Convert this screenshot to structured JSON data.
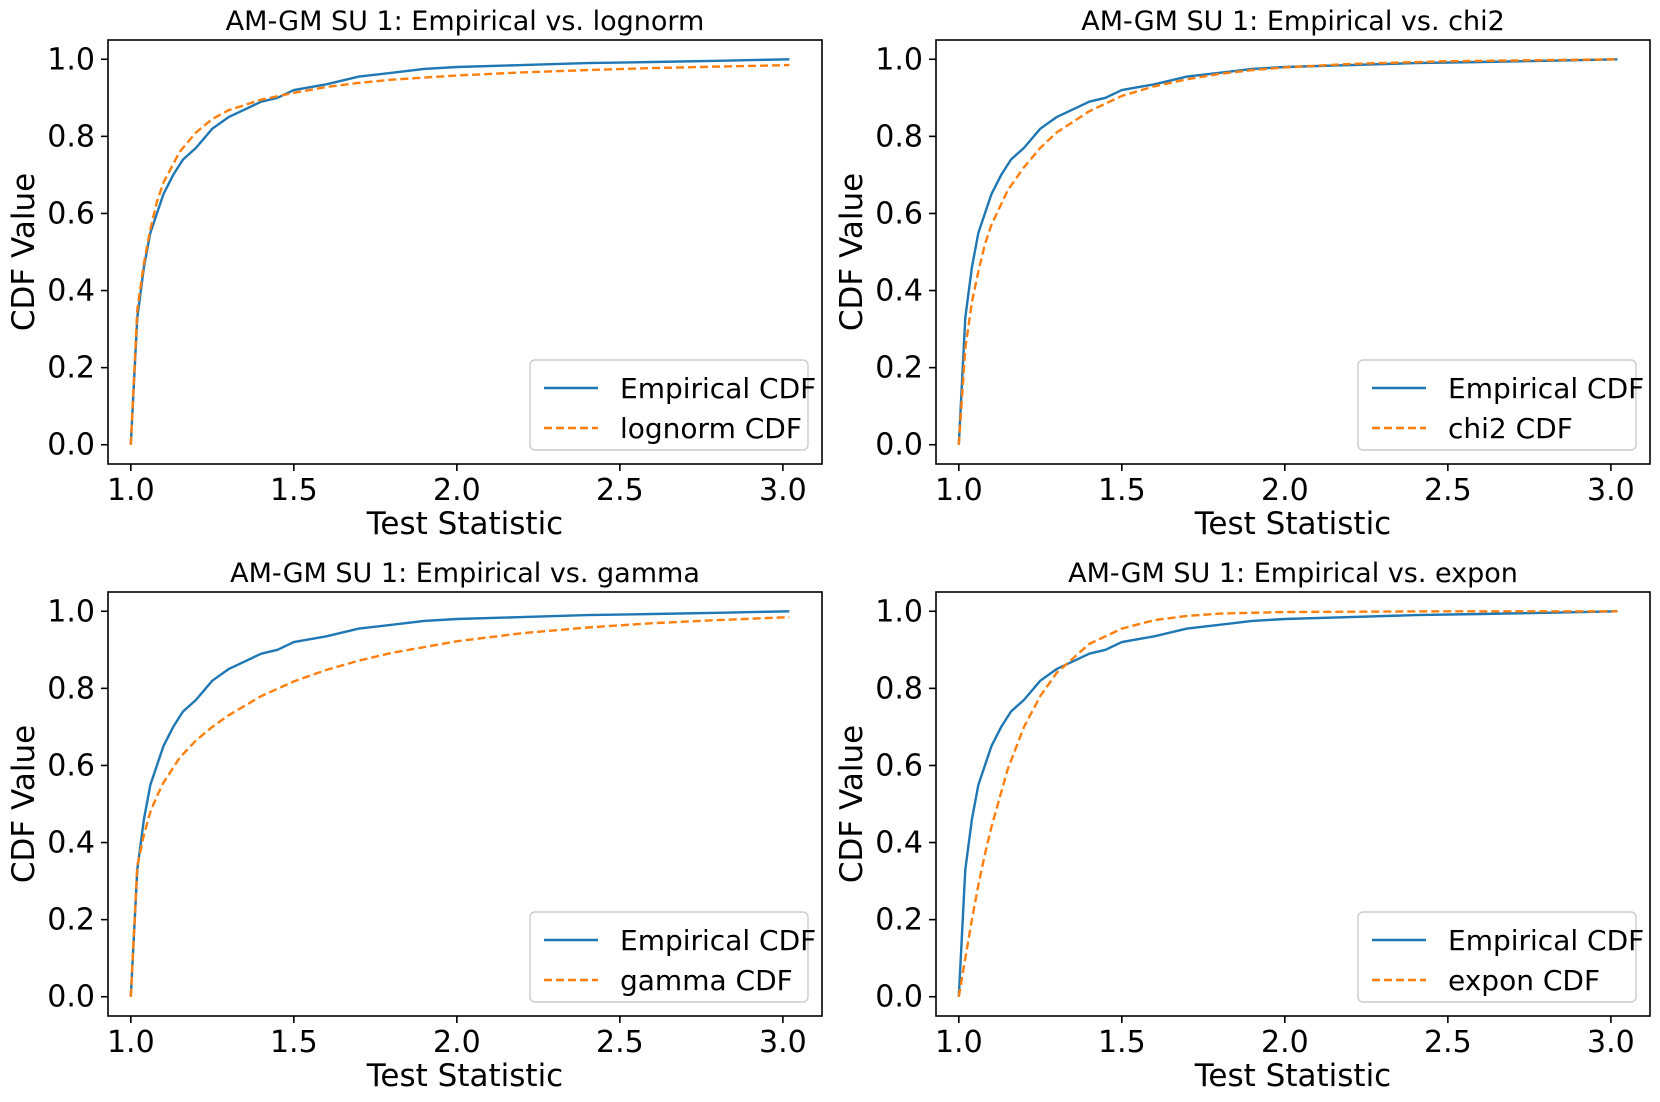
{
  "figure": {
    "colors": {
      "empirical": "#1f77b4",
      "fitted": "#ff7f0e"
    }
  },
  "chart_data": [
    {
      "type": "line",
      "title": "AM-GM SU 1: Empirical vs. lognorm",
      "xlabel": "Test Statistic",
      "ylabel": "CDF Value",
      "xlim": [
        0.93,
        3.12
      ],
      "ylim": [
        -0.05,
        1.05
      ],
      "xticks": [
        1.0,
        1.5,
        2.0,
        2.5,
        3.0
      ],
      "xtick_labels": [
        "1.0",
        "1.5",
        "2.0",
        "2.5",
        "3.0"
      ],
      "yticks": [
        0.0,
        0.2,
        0.4,
        0.6,
        0.8,
        1.0
      ],
      "ytick_labels": [
        "0.0",
        "0.2",
        "0.4",
        "0.6",
        "0.8",
        "1.0"
      ],
      "legend_position": "lower-right",
      "series": [
        {
          "name": "Empirical CDF",
          "style": "solid",
          "x": [
            1.0,
            1.02,
            1.04,
            1.06,
            1.08,
            1.1,
            1.13,
            1.16,
            1.2,
            1.25,
            1.3,
            1.35,
            1.4,
            1.45,
            1.5,
            1.6,
            1.7,
            1.8,
            1.9,
            2.0,
            2.2,
            2.4,
            2.6,
            2.8,
            3.02
          ],
          "y": [
            0.0,
            0.33,
            0.46,
            0.55,
            0.6,
            0.65,
            0.7,
            0.74,
            0.77,
            0.82,
            0.85,
            0.87,
            0.89,
            0.9,
            0.92,
            0.935,
            0.955,
            0.965,
            0.975,
            0.98,
            0.985,
            0.99,
            0.993,
            0.996,
            1.0
          ]
        },
        {
          "name": "lognorm CDF",
          "style": "dashed",
          "x": [
            1.0,
            1.02,
            1.04,
            1.06,
            1.08,
            1.1,
            1.15,
            1.2,
            1.25,
            1.3,
            1.4,
            1.5,
            1.6,
            1.7,
            1.8,
            2.0,
            2.2,
            2.4,
            2.6,
            2.8,
            3.02
          ],
          "y": [
            0.0,
            0.35,
            0.47,
            0.56,
            0.63,
            0.68,
            0.76,
            0.81,
            0.845,
            0.868,
            0.895,
            0.913,
            0.928,
            0.939,
            0.947,
            0.958,
            0.966,
            0.972,
            0.977,
            0.981,
            0.985
          ]
        }
      ]
    },
    {
      "type": "line",
      "title": "AM-GM SU 1: Empirical vs. chi2",
      "xlabel": "Test Statistic",
      "ylabel": "CDF Value",
      "xlim": [
        0.93,
        3.12
      ],
      "ylim": [
        -0.05,
        1.05
      ],
      "xticks": [
        1.0,
        1.5,
        2.0,
        2.5,
        3.0
      ],
      "xtick_labels": [
        "1.0",
        "1.5",
        "2.0",
        "2.5",
        "3.0"
      ],
      "yticks": [
        0.0,
        0.2,
        0.4,
        0.6,
        0.8,
        1.0
      ],
      "ytick_labels": [
        "0.0",
        "0.2",
        "0.4",
        "0.6",
        "0.8",
        "1.0"
      ],
      "legend_position": "lower-right",
      "series": [
        {
          "name": "Empirical CDF",
          "style": "solid",
          "x": [
            1.0,
            1.02,
            1.04,
            1.06,
            1.08,
            1.1,
            1.13,
            1.16,
            1.2,
            1.25,
            1.3,
            1.35,
            1.4,
            1.45,
            1.5,
            1.6,
            1.7,
            1.8,
            1.9,
            2.0,
            2.2,
            2.4,
            2.6,
            2.8,
            3.02
          ],
          "y": [
            0.0,
            0.33,
            0.46,
            0.55,
            0.6,
            0.65,
            0.7,
            0.74,
            0.77,
            0.82,
            0.85,
            0.87,
            0.89,
            0.9,
            0.92,
            0.935,
            0.955,
            0.965,
            0.975,
            0.98,
            0.985,
            0.99,
            0.993,
            0.996,
            1.0
          ]
        },
        {
          "name": "chi2 CDF",
          "style": "dashed",
          "x": [
            1.0,
            1.02,
            1.04,
            1.06,
            1.08,
            1.1,
            1.15,
            1.2,
            1.25,
            1.3,
            1.4,
            1.5,
            1.6,
            1.7,
            1.8,
            1.9,
            2.0,
            2.2,
            2.5,
            3.02
          ],
          "y": [
            0.0,
            0.25,
            0.37,
            0.45,
            0.52,
            0.57,
            0.66,
            0.72,
            0.77,
            0.81,
            0.865,
            0.905,
            0.93,
            0.948,
            0.962,
            0.972,
            0.979,
            0.988,
            0.995,
            1.0
          ]
        }
      ]
    },
    {
      "type": "line",
      "title": "AM-GM SU 1: Empirical vs. gamma",
      "xlabel": "Test Statistic",
      "ylabel": "CDF Value",
      "xlim": [
        0.93,
        3.12
      ],
      "ylim": [
        -0.05,
        1.05
      ],
      "xticks": [
        1.0,
        1.5,
        2.0,
        2.5,
        3.0
      ],
      "xtick_labels": [
        "1.0",
        "1.5",
        "2.0",
        "2.5",
        "3.0"
      ],
      "yticks": [
        0.0,
        0.2,
        0.4,
        0.6,
        0.8,
        1.0
      ],
      "ytick_labels": [
        "0.0",
        "0.2",
        "0.4",
        "0.6",
        "0.8",
        "1.0"
      ],
      "legend_position": "lower-right",
      "series": [
        {
          "name": "Empirical CDF",
          "style": "solid",
          "x": [
            1.0,
            1.02,
            1.04,
            1.06,
            1.08,
            1.1,
            1.13,
            1.16,
            1.2,
            1.25,
            1.3,
            1.35,
            1.4,
            1.45,
            1.5,
            1.6,
            1.7,
            1.8,
            1.9,
            2.0,
            2.2,
            2.4,
            2.6,
            2.8,
            3.02
          ],
          "y": [
            0.0,
            0.33,
            0.46,
            0.55,
            0.6,
            0.65,
            0.7,
            0.74,
            0.77,
            0.82,
            0.85,
            0.87,
            0.89,
            0.9,
            0.92,
            0.935,
            0.955,
            0.965,
            0.975,
            0.98,
            0.985,
            0.99,
            0.993,
            0.996,
            1.0
          ]
        },
        {
          "name": "gamma CDF",
          "style": "dashed",
          "x": [
            1.0,
            1.02,
            1.04,
            1.06,
            1.08,
            1.1,
            1.15,
            1.2,
            1.25,
            1.3,
            1.4,
            1.5,
            1.6,
            1.7,
            1.8,
            2.0,
            2.2,
            2.4,
            2.6,
            2.8,
            3.02
          ],
          "y": [
            0.0,
            0.34,
            0.42,
            0.48,
            0.52,
            0.555,
            0.62,
            0.665,
            0.7,
            0.73,
            0.78,
            0.818,
            0.848,
            0.872,
            0.892,
            0.922,
            0.943,
            0.958,
            0.969,
            0.977,
            0.985
          ]
        }
      ]
    },
    {
      "type": "line",
      "title": "AM-GM SU 1: Empirical vs. expon",
      "xlabel": "Test Statistic",
      "ylabel": "CDF Value",
      "xlim": [
        0.93,
        3.12
      ],
      "ylim": [
        -0.05,
        1.05
      ],
      "xticks": [
        1.0,
        1.5,
        2.0,
        2.5,
        3.0
      ],
      "xtick_labels": [
        "1.0",
        "1.5",
        "2.0",
        "2.5",
        "3.0"
      ],
      "yticks": [
        0.0,
        0.2,
        0.4,
        0.6,
        0.8,
        1.0
      ],
      "ytick_labels": [
        "0.0",
        "0.2",
        "0.4",
        "0.6",
        "0.8",
        "1.0"
      ],
      "legend_position": "lower-right",
      "series": [
        {
          "name": "Empirical CDF",
          "style": "solid",
          "x": [
            1.0,
            1.02,
            1.04,
            1.06,
            1.08,
            1.1,
            1.13,
            1.16,
            1.2,
            1.25,
            1.3,
            1.35,
            1.4,
            1.45,
            1.5,
            1.6,
            1.7,
            1.8,
            1.9,
            2.0,
            2.2,
            2.4,
            2.6,
            2.8,
            3.02
          ],
          "y": [
            0.0,
            0.33,
            0.46,
            0.55,
            0.6,
            0.65,
            0.7,
            0.74,
            0.77,
            0.82,
            0.85,
            0.87,
            0.89,
            0.9,
            0.92,
            0.935,
            0.955,
            0.965,
            0.975,
            0.98,
            0.985,
            0.99,
            0.993,
            0.996,
            1.0
          ]
        },
        {
          "name": "expon CDF",
          "style": "dashed",
          "x": [
            1.0,
            1.02,
            1.04,
            1.06,
            1.08,
            1.1,
            1.15,
            1.2,
            1.25,
            1.3,
            1.4,
            1.5,
            1.6,
            1.7,
            1.8,
            2.0,
            2.2,
            2.5,
            3.02
          ],
          "y": [
            0.0,
            0.1,
            0.2,
            0.29,
            0.37,
            0.44,
            0.59,
            0.7,
            0.78,
            0.84,
            0.915,
            0.955,
            0.977,
            0.988,
            0.994,
            0.998,
            0.999,
            1.0,
            1.0
          ]
        }
      ]
    }
  ]
}
